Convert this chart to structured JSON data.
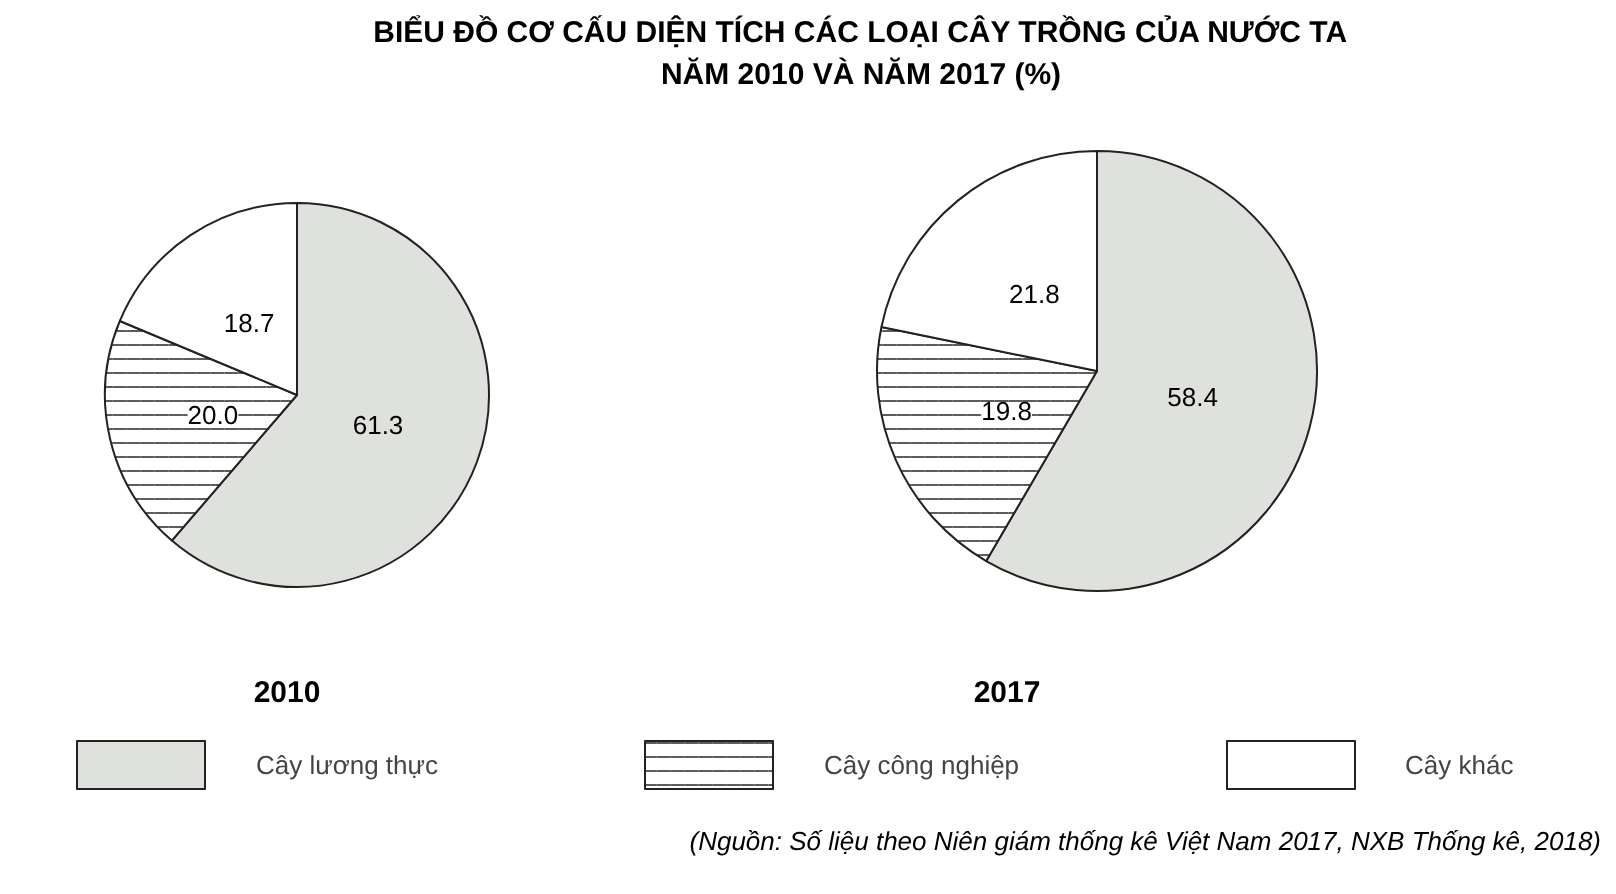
{
  "chart_data": {
    "type": "pie",
    "title": "BIỂU ĐỒ CƠ CẤU DIỆN TÍCH CÁC LOẠI CÂY TRỒNG CỦA NƯỚC TA\nNĂM 2010 VÀ NĂM 2017 (%)",
    "categories": [
      "Cây lương thực",
      "Cây công nghiệp",
      "Cây khác"
    ],
    "colors": [
      "#dfe2dc",
      "#ffffff",
      "#ffffff"
    ],
    "series": [
      {
        "name": "2010",
        "values": [
          61.3,
          20.0,
          18.7
        ],
        "value_labels": [
          "61.3",
          "20.0",
          "18.7"
        ]
      },
      {
        "name": "2017",
        "values": [
          58.4,
          19.8,
          21.8
        ],
        "value_labels": [
          "58.4",
          "19.8",
          "21.8"
        ]
      }
    ],
    "legend": "bottom",
    "annotations": [
      "(Nguồn: Số liệu theo Niên giám thống kê Việt Nam 2017, NXB Thống kê, 2018)"
    ]
  }
}
